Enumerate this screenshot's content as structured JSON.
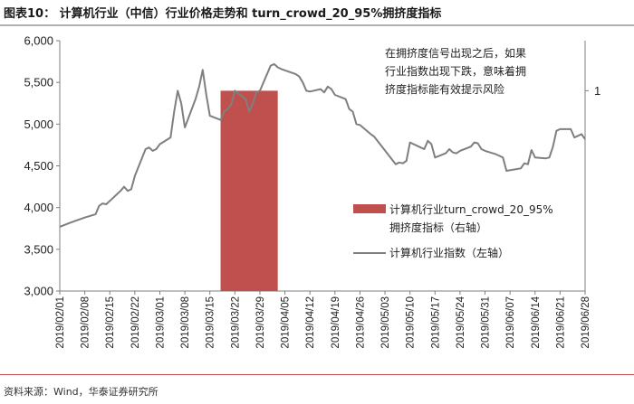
{
  "header": {
    "title": "图表10：  计算机行业（中信）行业价格走势和 turn_crowd_20_95%拥挤度指标"
  },
  "footer": {
    "source": "资料来源：Wind，华泰证券研究所"
  },
  "colors": {
    "bar": "#c0504d",
    "line": "#7f7f7f",
    "rule": "#c0504d"
  },
  "chart_data": {
    "type": "line",
    "title": "",
    "annotation": [
      "在拥挤度信号出现之后，如果",
      "行业指数出现下跌，意味着拥",
      "挤度指标能有效提示风险"
    ],
    "x_tick_labels": [
      "2019/02/01",
      "2019/02/08",
      "2019/02/15",
      "2019/02/22",
      "2019/03/01",
      "2019/03/08",
      "2019/03/15",
      "2019/03/22",
      "2019/03/29",
      "2019/04/05",
      "2019/04/12",
      "2019/04/19",
      "2019/04/26",
      "2019/05/03",
      "2019/05/10",
      "2019/05/17",
      "2019/05/24",
      "2019/05/31",
      "2019/06/07",
      "2019/06/14",
      "2019/06/21",
      "2019/06/28"
    ],
    "x_start": "2019/02/01",
    "x_end": "2019/06/28",
    "y_left": {
      "ticks": [
        "3,000",
        "3,500",
        "4,000",
        "4,500",
        "5,000",
        "5,500",
        "6,000"
      ],
      "min": 3000,
      "max": 6000
    },
    "y_right": {
      "ticks": [
        "1"
      ],
      "min": 0,
      "max": 1.25
    },
    "series": [
      {
        "name": "计算机行业指数（左轴）",
        "axis": "left",
        "points": [
          [
            "2019/02/01",
            3770
          ],
          [
            "2019/02/04",
            3820
          ],
          [
            "2019/02/08",
            3880
          ],
          [
            "2019/02/11",
            3920
          ],
          [
            "2019/02/12",
            4020
          ],
          [
            "2019/02/13",
            4050
          ],
          [
            "2019/02/14",
            4040
          ],
          [
            "2019/02/15",
            4080
          ],
          [
            "2019/02/18",
            4200
          ],
          [
            "2019/02/19",
            4250
          ],
          [
            "2019/02/20",
            4200
          ],
          [
            "2019/02/21",
            4220
          ],
          [
            "2019/02/22",
            4380
          ],
          [
            "2019/02/25",
            4700
          ],
          [
            "2019/02/26",
            4720
          ],
          [
            "2019/02/27",
            4680
          ],
          [
            "2019/02/28",
            4700
          ],
          [
            "2019/03/01",
            4760
          ],
          [
            "2019/03/04",
            4840
          ],
          [
            "2019/03/05",
            5150
          ],
          [
            "2019/03/06",
            5400
          ],
          [
            "2019/03/07",
            5250
          ],
          [
            "2019/03/08",
            4960
          ],
          [
            "2019/03/11",
            5300
          ],
          [
            "2019/03/12",
            5450
          ],
          [
            "2019/03/13",
            5650
          ],
          [
            "2019/03/14",
            5350
          ],
          [
            "2019/03/15",
            5100
          ],
          [
            "2019/03/18",
            5050
          ],
          [
            "2019/03/19",
            5150
          ],
          [
            "2019/03/20",
            5180
          ],
          [
            "2019/03/21",
            5240
          ],
          [
            "2019/03/22",
            5400
          ],
          [
            "2019/03/25",
            5300
          ],
          [
            "2019/03/26",
            5150
          ],
          [
            "2019/03/27",
            5250
          ],
          [
            "2019/03/28",
            5380
          ],
          [
            "2019/03/29",
            5400
          ],
          [
            "2019/04/01",
            5700
          ],
          [
            "2019/04/02",
            5720
          ],
          [
            "2019/04/03",
            5680
          ],
          [
            "2019/04/04",
            5660
          ],
          [
            "2019/04/08",
            5600
          ],
          [
            "2019/04/09",
            5570
          ],
          [
            "2019/04/10",
            5500
          ],
          [
            "2019/04/11",
            5400
          ],
          [
            "2019/04/12",
            5390
          ],
          [
            "2019/04/15",
            5420
          ],
          [
            "2019/04/16",
            5380
          ],
          [
            "2019/04/17",
            5450
          ],
          [
            "2019/04/18",
            5420
          ],
          [
            "2019/04/19",
            5350
          ],
          [
            "2019/04/22",
            5300
          ],
          [
            "2019/04/23",
            5180
          ],
          [
            "2019/04/24",
            5150
          ],
          [
            "2019/04/25",
            5000
          ],
          [
            "2019/04/26",
            4990
          ],
          [
            "2019/04/29",
            4880
          ],
          [
            "2019/04/30",
            4850
          ],
          [
            "2019/05/06",
            4520
          ],
          [
            "2019/05/07",
            4540
          ],
          [
            "2019/05/08",
            4530
          ],
          [
            "2019/05/09",
            4560
          ],
          [
            "2019/05/10",
            4780
          ],
          [
            "2019/05/13",
            4720
          ],
          [
            "2019/05/14",
            4700
          ],
          [
            "2019/05/15",
            4800
          ],
          [
            "2019/05/16",
            4760
          ],
          [
            "2019/05/17",
            4600
          ],
          [
            "2019/05/20",
            4650
          ],
          [
            "2019/05/21",
            4700
          ],
          [
            "2019/05/22",
            4660
          ],
          [
            "2019/05/23",
            4650
          ],
          [
            "2019/05/24",
            4680
          ],
          [
            "2019/05/27",
            4730
          ],
          [
            "2019/05/28",
            4780
          ],
          [
            "2019/05/29",
            4770
          ],
          [
            "2019/05/30",
            4700
          ],
          [
            "2019/05/31",
            4680
          ],
          [
            "2019/06/03",
            4640
          ],
          [
            "2019/06/04",
            4620
          ],
          [
            "2019/06/05",
            4600
          ],
          [
            "2019/06/06",
            4440
          ],
          [
            "2019/06/10",
            4470
          ],
          [
            "2019/06/11",
            4530
          ],
          [
            "2019/06/12",
            4520
          ],
          [
            "2019/06/13",
            4690
          ],
          [
            "2019/06/14",
            4600
          ],
          [
            "2019/06/17",
            4590
          ],
          [
            "2019/06/18",
            4600
          ],
          [
            "2019/06/19",
            4730
          ],
          [
            "2019/06/20",
            4920
          ],
          [
            "2019/06/21",
            4940
          ],
          [
            "2019/06/24",
            4940
          ],
          [
            "2019/06/25",
            4840
          ],
          [
            "2019/06/26",
            4860
          ],
          [
            "2019/06/27",
            4880
          ],
          [
            "2019/06/28",
            4820
          ]
        ]
      },
      {
        "name": "计算机行业turn_crowd_20_95%拥挤度指标（右轴）",
        "axis": "right",
        "type": "bar",
        "range": [
          "2019/03/18",
          "2019/04/03"
        ],
        "value": 1
      }
    ],
    "legend": {
      "placement": "middle-right",
      "bar_label": [
        "计算机行业turn_crowd_20_95%",
        "拥挤度指标（右轴）"
      ],
      "line_label": "计算机行业指数（左轴）"
    },
    "grid": false
  }
}
